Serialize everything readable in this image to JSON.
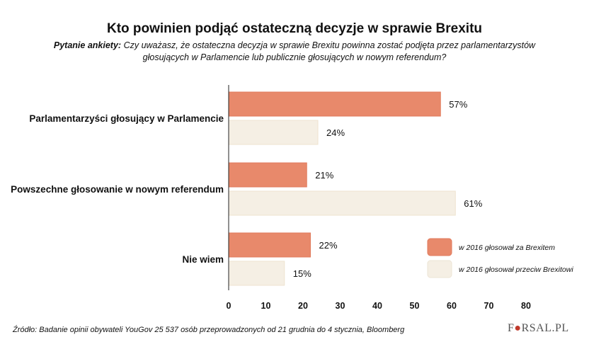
{
  "chart_data": {
    "type": "bar",
    "orientation": "horizontal",
    "title": "Kto powinien podjąć ostateczną decyzje w sprawie Brexitu",
    "subtitle_label": "Pytanie ankiety:",
    "subtitle": "Czy uważasz, że ostateczna decyzja w sprawie Brexitu powinna zostać podjęta przez parlamentarzystów głosujących w Parlamencie lub publicznie głosujących w nowym referendum?",
    "categories": [
      "Parlamentarzyści głosujący w Parlamencie",
      "Powszechne głosowanie w nowym referendum",
      "Nie wiem"
    ],
    "series": [
      {
        "name": "w 2016 głosował za Brexitem",
        "values": [
          57,
          21,
          22
        ],
        "color": "#e8896b"
      },
      {
        "name": "w 2016 głosował przeciw Brexitowi",
        "values": [
          24,
          61,
          15
        ],
        "color": "#f5efe4"
      }
    ],
    "value_suffix": "%",
    "xlim": [
      0,
      80
    ],
    "xticks": [
      "0",
      "10",
      "20",
      "30",
      "40",
      "50",
      "60",
      "70",
      "80"
    ],
    "grid": false,
    "legend_position": "bottom-right"
  },
  "footer": {
    "source": "Źródło: Badanie opinii obywateli YouGov  25 537 osób przeprowadzonych od 21 grudnia do 4 stycznia, Bloomberg",
    "logo": "FORSAL.PL"
  }
}
